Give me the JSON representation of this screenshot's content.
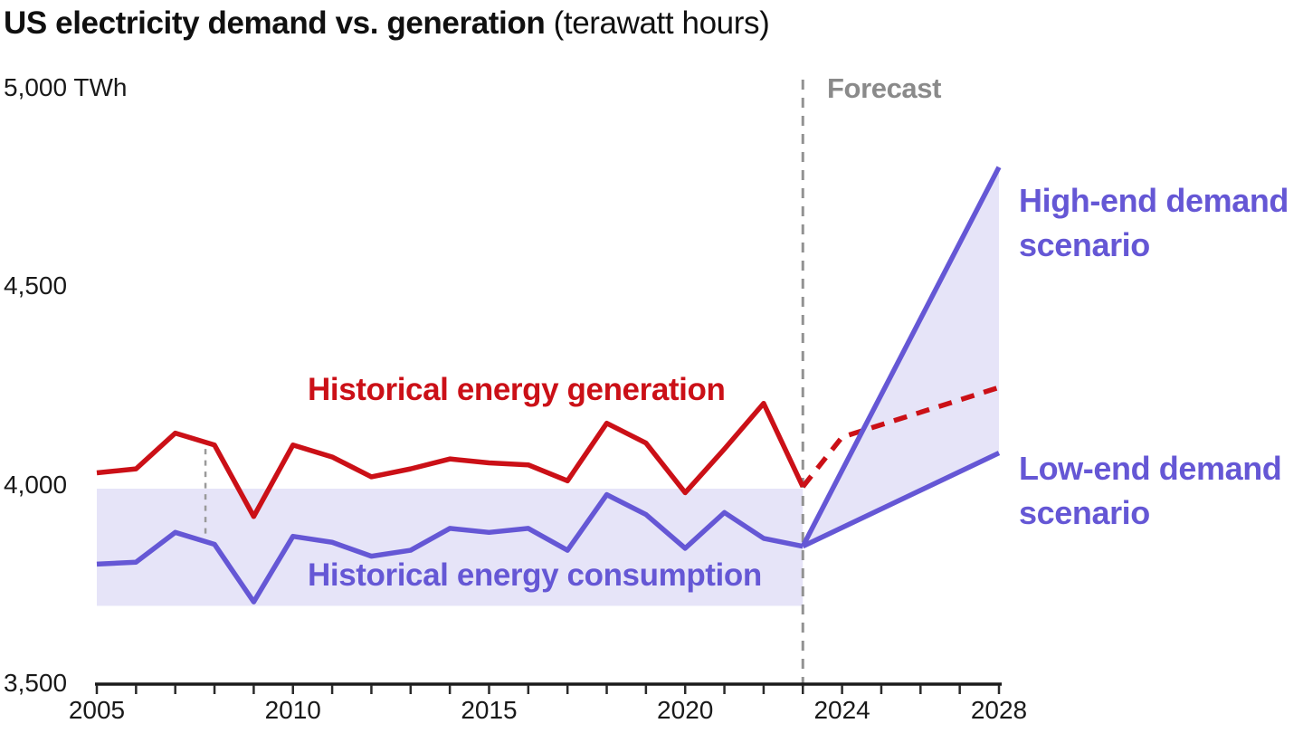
{
  "title": {
    "main": "US electricity demand vs. generation",
    "sub": "(terawatt hours)"
  },
  "colors": {
    "red": "#cb1017",
    "purple": "#6557d5",
    "band": "#e6e4f8",
    "gray_text": "#8a8a8a",
    "gray_line": "#929292",
    "marker_gray": "#9a9a9a",
    "axis": "#1a1a1a"
  },
  "annotations": {
    "forecast": "Forecast",
    "generation": "Historical energy generation",
    "consumption": "Historical energy consumption",
    "high_end": "High-end demand scenario",
    "low_end": "Low-end demand scenario"
  },
  "y_axis": {
    "unit": "TWh",
    "labels": [
      {
        "text": "5,000 TWh",
        "value": 5000
      },
      {
        "text": "4,500",
        "value": 4500
      },
      {
        "text": "4,000",
        "value": 4000
      },
      {
        "text": "3,500",
        "value": 3500
      }
    ]
  },
  "x_axis": {
    "tick_start": 2005,
    "tick_end": 2028,
    "labels": [
      {
        "text": "2005",
        "year": 2005
      },
      {
        "text": "2010",
        "year": 2010
      },
      {
        "text": "2015",
        "year": 2015
      },
      {
        "text": "2020",
        "year": 2020
      },
      {
        "text": "2024",
        "year": 2024
      },
      {
        "text": "2028",
        "year": 2028
      }
    ]
  },
  "chart_data": {
    "type": "line",
    "title": "US electricity demand vs. generation (terawatt hours)",
    "xlim": [
      2005,
      2028
    ],
    "ylim": [
      3500,
      5000
    ],
    "grid": false,
    "forecast_start": 2023,
    "series": [
      {
        "key": "generation-line",
        "name": "Historical energy generation",
        "color": "red",
        "dashed": false,
        "width": 5.5,
        "x": [
          2005,
          2006,
          2007,
          2008,
          2009,
          2010,
          2011,
          2012,
          2013,
          2014,
          2015,
          2016,
          2017,
          2018,
          2019,
          2020,
          2021,
          2022,
          2023
        ],
        "values": [
          4030,
          4040,
          4130,
          4100,
          3920,
          4100,
          4070,
          4020,
          4040,
          4065,
          4055,
          4050,
          4010,
          4155,
          4105,
          3980,
          4090,
          4205,
          3995
        ]
      },
      {
        "key": "consumption-line",
        "name": "Historical energy consumption",
        "color": "purple",
        "dashed": false,
        "width": 5.5,
        "x": [
          2005,
          2006,
          2007,
          2008,
          2009,
          2010,
          2011,
          2012,
          2013,
          2014,
          2015,
          2016,
          2017,
          2018,
          2019,
          2020,
          2021,
          2022,
          2023
        ],
        "values": [
          3800,
          3805,
          3880,
          3850,
          3705,
          3870,
          3855,
          3820,
          3835,
          3890,
          3880,
          3890,
          3835,
          3975,
          3925,
          3840,
          3930,
          3865,
          3845
        ]
      },
      {
        "key": "generation-forecast-line",
        "name": "Energy generation forecast",
        "color": "red",
        "dashed": true,
        "width": 5.5,
        "x": [
          2023,
          2024,
          2028
        ],
        "values": [
          3995,
          4120,
          4245
        ]
      },
      {
        "key": "high-end-line",
        "name": "High-end demand scenario",
        "color": "purple",
        "dashed": false,
        "width": 5.5,
        "x": [
          2023,
          2028
        ],
        "values": [
          3845,
          4800
        ]
      },
      {
        "key": "low-end-line",
        "name": "Low-end demand scenario",
        "color": "purple",
        "dashed": false,
        "width": 5.5,
        "x": [
          2023,
          2028
        ],
        "values": [
          3845,
          4080
        ]
      }
    ],
    "areas": [
      {
        "name": "historical-consumption-band",
        "points": [
          [
            2005,
            3990
          ],
          [
            2023,
            3990
          ],
          [
            2023,
            3695
          ],
          [
            2005,
            3695
          ]
        ]
      },
      {
        "name": "forecast-demand-range",
        "points": [
          [
            2023,
            3845
          ],
          [
            2028,
            4800
          ],
          [
            2028,
            4080
          ]
        ]
      }
    ],
    "divider": {
      "year": 2023,
      "label": "Forecast"
    },
    "gap_marker": {
      "year": 2007.77,
      "value_from": 4090,
      "value_to": 3870
    }
  }
}
